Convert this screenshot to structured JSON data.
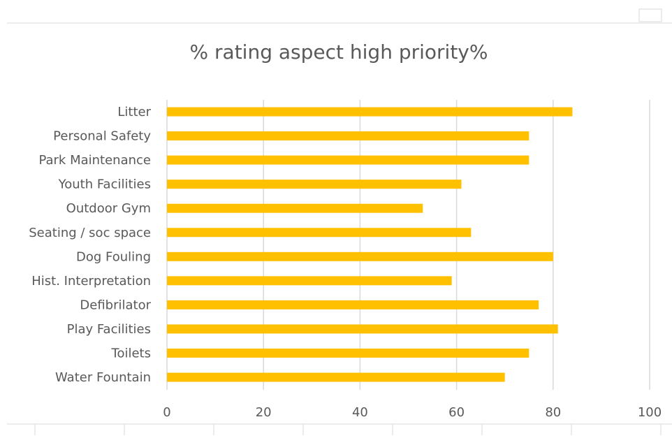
{
  "chart_data": {
    "type": "bar",
    "orientation": "horizontal",
    "title": "% rating aspect high priority%",
    "categories": [
      "Litter",
      "Personal Safety",
      "Park Maintenance",
      "Youth Facilities",
      "Outdoor Gym",
      "Seating / soc space",
      "Dog Fouling",
      "Hist. Interpretation",
      "Defibrilator",
      "Play Facilities",
      "Toilets",
      "Water Fountain"
    ],
    "values": [
      84,
      75,
      75,
      61,
      53,
      63,
      80,
      59,
      77,
      81,
      75,
      70
    ],
    "xlim": [
      0,
      100
    ],
    "xticks": [
      0,
      20,
      40,
      60,
      80,
      100
    ],
    "grid": true,
    "legend": "none",
    "colors": {
      "bar": "#FFC000",
      "grid": "#D9D9D9",
      "text": "#595959",
      "title": "#595959",
      "frame": "#D9D9D9"
    }
  }
}
